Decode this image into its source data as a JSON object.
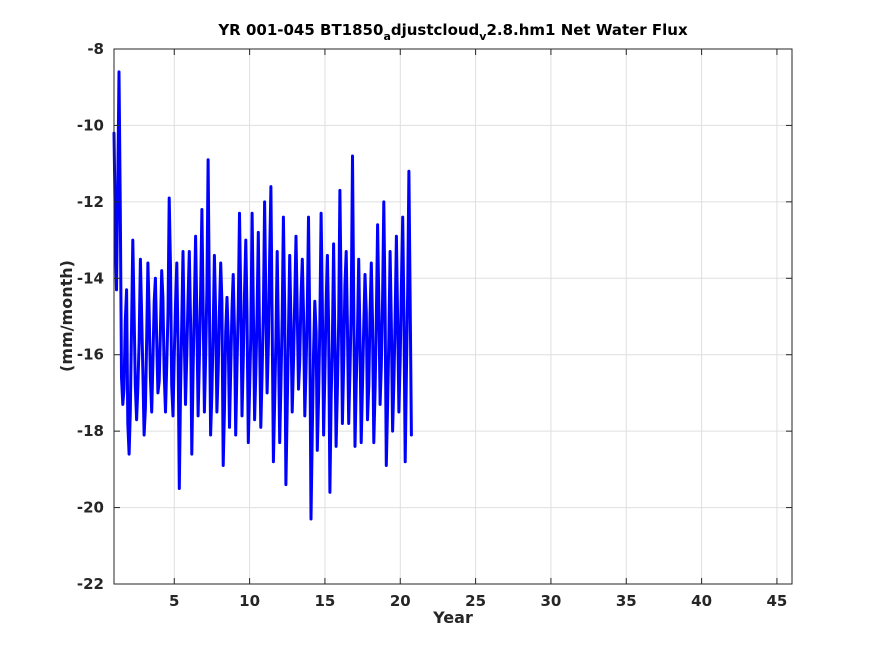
{
  "chart_data": {
    "type": "line",
    "title": {
      "part1": "YR 001-045 BT1850",
      "sub1": "a",
      "part2": "djustcloud",
      "sub2": "v",
      "part3": "2.8.hm1 Net Water Flux"
    },
    "xlabel": "Year",
    "ylabel": "(mm/month)",
    "xlim": [
      1,
      46
    ],
    "ylim": [
      -22,
      -8
    ],
    "xticks": [
      5,
      10,
      15,
      20,
      25,
      30,
      35,
      40,
      45
    ],
    "yticks": [
      -8,
      -10,
      -12,
      -14,
      -16,
      -18,
      -20,
      -22
    ],
    "grid": true,
    "series": [
      {
        "color": "#0000ff",
        "x_start": 1.0,
        "x_step": 0.0833,
        "values": [
          -10.2,
          -12.6,
          -14.3,
          -11.5,
          -8.6,
          -12.2,
          -16.6,
          -17.3,
          -16.9,
          -15.1,
          -14.3,
          -17.8,
          -18.6,
          -17.5,
          -15.2,
          -13.0,
          -14.9,
          -16.8,
          -17.7,
          -16.9,
          -15.7,
          -13.5,
          -14.9,
          -16.5,
          -18.1,
          -17.4,
          -15.7,
          -13.6,
          -14.8,
          -16.6,
          -17.5,
          -16.2,
          -14.6,
          -14.0,
          -15.6,
          -17.0,
          -16.7,
          -15.4,
          -13.8,
          -14.5,
          -16.5,
          -17.5,
          -16.3,
          -14.9,
          -11.9,
          -13.7,
          -16.8,
          -17.6,
          -16.1,
          -14.7,
          -13.6,
          -15.6,
          -19.5,
          -17.0,
          -15.1,
          -13.3,
          -15.6,
          -17.3,
          -16.0,
          -14.6,
          -13.3,
          -15.2,
          -18.6,
          -16.4,
          -14.8,
          -12.9,
          -14.9,
          -17.6,
          -16.2,
          -14.4,
          -12.2,
          -14.7,
          -17.5,
          -16.1,
          -14.3,
          -10.9,
          -14.6,
          -18.1,
          -17.0,
          -15.5,
          -13.4,
          -15.0,
          -17.5,
          -16.4,
          -14.9,
          -13.6,
          -14.6,
          -18.9,
          -17.5,
          -15.4,
          -14.5,
          -15.5,
          -17.9,
          -16.4,
          -14.8,
          -13.9,
          -15.4,
          -18.1,
          -16.3,
          -14.7,
          -12.3,
          -14.6,
          -17.6,
          -16.1,
          -14.4,
          -13.0,
          -14.9,
          -18.3,
          -17.0,
          -15.5,
          -12.3,
          -14.7,
          -17.7,
          -16.5,
          -14.9,
          -12.8,
          -15.6,
          -17.9,
          -16.5,
          -14.8,
          -12.0,
          -14.7,
          -17.0,
          -15.7,
          -13.5,
          -11.6,
          -15.0,
          -18.8,
          -17.3,
          -15.6,
          -13.3,
          -15.5,
          -18.3,
          -16.8,
          -15.0,
          -12.4,
          -14.8,
          -19.4,
          -17.4,
          -15.4,
          -13.4,
          -15.2,
          -17.5,
          -16.2,
          -14.6,
          -12.9,
          -14.8,
          -16.9,
          -16.2,
          -14.5,
          -13.5,
          -14.9,
          -17.6,
          -16.4,
          -14.8,
          -12.4,
          -15.3,
          -20.3,
          -18.0,
          -15.9,
          -14.6,
          -15.4,
          -18.5,
          -17.1,
          -15.3,
          -12.3,
          -14.6,
          -18.1,
          -16.6,
          -14.7,
          -13.4,
          -15.2,
          -19.6,
          -17.2,
          -15.6,
          -13.1,
          -15.7,
          -18.4,
          -16.9,
          -15.1,
          -11.7,
          -14.6,
          -17.8,
          -16.2,
          -14.2,
          -13.3,
          -15.2,
          -17.8,
          -16.4,
          -14.8,
          -10.8,
          -14.6,
          -18.4,
          -16.8,
          -15.4,
          -13.5,
          -15.6,
          -18.3,
          -16.8,
          -15.2,
          -13.9,
          -14.9,
          -17.7,
          -16.8,
          -15.0,
          -13.6,
          -15.1,
          -18.3,
          -16.9,
          -15.1,
          -12.6,
          -14.6,
          -17.3,
          -16.3,
          -14.5,
          -12.0,
          -14.8,
          -18.9,
          -17.3,
          -15.5,
          -13.3,
          -15.3,
          -18.0,
          -16.7,
          -15.1,
          -12.9,
          -15.0,
          -17.5,
          -16.1,
          -14.2,
          -12.4,
          -14.9,
          -18.8,
          -16.5,
          -14.3,
          -11.2,
          -14.7,
          -18.1
        ]
      }
    ]
  }
}
